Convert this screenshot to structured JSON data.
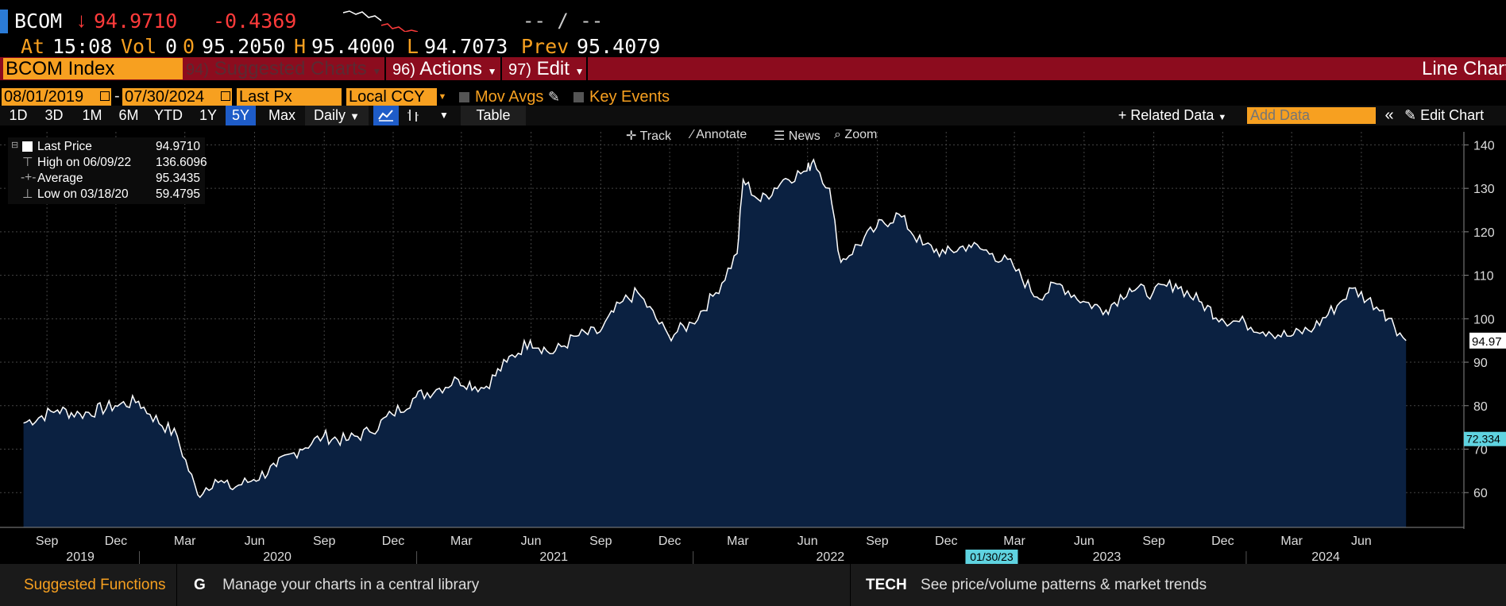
{
  "quote": {
    "ticker": "BCOM",
    "price": "94.9710",
    "down_arrow": "↓",
    "change": "-0.4369",
    "placeholder": "-- / --",
    "time_label": "At",
    "time": "15:08",
    "vol_label": "Vol",
    "vol": "0",
    "open_label": "0",
    "open": "95.2050",
    "high_label": "H",
    "high": "95.4000",
    "low_label": "L",
    "low": "94.7073",
    "prev_label": "Prev",
    "prev": "95.4079"
  },
  "menu": {
    "security": "BCOM Index",
    "suggested_num": "94)",
    "suggested": "Suggested Charts",
    "actions_num": "96)",
    "actions": "Actions",
    "edit_num": "97)",
    "edit": "Edit",
    "chart_type": "Line Chart"
  },
  "options": {
    "start_date": "08/01/2019",
    "dash": "-",
    "end_date": "07/30/2024",
    "field": "Last Px",
    "currency": "Local CCY",
    "mov_avgs": "Mov Avgs",
    "key_events": "Key Events"
  },
  "toolbar": {
    "ranges": [
      "1D",
      "3D",
      "1M",
      "6M",
      "YTD",
      "1Y",
      "5Y",
      "Max"
    ],
    "selected_range": "5Y",
    "frequency": "Daily",
    "table": "Table",
    "related": "+ Related Data",
    "add_data_placeholder": "Add Data",
    "edit_chart": "Edit Chart"
  },
  "chart_tools": [
    "Track",
    "Annotate",
    "News",
    "Zoom"
  ],
  "legend": {
    "rows": [
      {
        "label": "Last Price",
        "value": "94.9710"
      },
      {
        "label": "High on 06/09/22",
        "value": "136.6096"
      },
      {
        "label": "Average",
        "value": "95.3435"
      },
      {
        "label": "Low on 03/18/20",
        "value": "59.4795"
      }
    ]
  },
  "colors": {
    "accent_orange": "#f7a020",
    "menu_red": "#8c0c1e",
    "down_red": "#ff3b3b",
    "area_fill": "#0b2141",
    "line": "#ffffff"
  },
  "chart_data": {
    "type": "area",
    "ylim": [
      52,
      143
    ],
    "y_ticks": [
      60,
      70,
      80,
      90,
      100,
      110,
      120,
      130,
      140
    ],
    "last_value_label": "94.97",
    "crosshair_label": "72.334",
    "crosshair_date": "01/30/23",
    "month_ticks": [
      "Sep",
      "Dec",
      "Mar",
      "Jun",
      "Sep",
      "Dec",
      "Mar",
      "Jun",
      "Sep",
      "Dec",
      "Mar",
      "Jun",
      "Sep",
      "Dec",
      "Mar",
      "Jun",
      "Sep",
      "Dec",
      "Mar",
      "Jun"
    ],
    "year_labels": [
      "2019",
      "2020",
      "2021",
      "2022",
      "2023",
      "2024"
    ],
    "x": [
      "2019-08-01",
      "2019-09-15",
      "2019-10-15",
      "2019-11-30",
      "2019-12-31",
      "2020-01-15",
      "2020-02-20",
      "2020-03-18",
      "2020-04-10",
      "2020-04-30",
      "2020-05-31",
      "2020-06-30",
      "2020-07-31",
      "2020-08-31",
      "2020-09-30",
      "2020-10-31",
      "2020-11-30",
      "2020-12-31",
      "2021-01-31",
      "2021-02-25",
      "2021-03-31",
      "2021-04-30",
      "2021-05-31",
      "2021-06-30",
      "2021-07-31",
      "2021-08-31",
      "2021-09-30",
      "2021-10-20",
      "2021-11-30",
      "2021-12-31",
      "2022-01-31",
      "2022-02-28",
      "2022-03-08",
      "2022-03-31",
      "2022-04-30",
      "2022-05-31",
      "2022-06-09",
      "2022-06-30",
      "2022-07-15",
      "2022-08-31",
      "2022-09-30",
      "2022-10-31",
      "2022-11-30",
      "2022-12-31",
      "2023-01-31",
      "2023-02-28",
      "2023-03-31",
      "2023-04-30",
      "2023-05-31",
      "2023-06-30",
      "2023-07-31",
      "2023-08-31",
      "2023-09-30",
      "2023-10-31",
      "2023-11-30",
      "2023-12-31",
      "2024-01-31",
      "2024-02-29",
      "2024-03-31",
      "2024-04-30",
      "2024-05-20",
      "2024-06-30",
      "2024-07-30"
    ],
    "y": [
      76,
      79,
      78,
      80,
      81,
      78,
      73,
      59.5,
      63,
      61,
      63,
      66,
      70,
      73,
      72,
      74,
      78,
      82,
      84,
      86,
      84,
      90,
      95,
      92,
      96,
      97,
      104,
      106,
      96,
      99,
      106,
      115,
      132,
      127,
      132,
      134,
      136.6,
      130,
      113,
      121,
      124,
      117,
      115,
      117,
      115,
      112,
      105,
      108,
      104,
      102,
      107,
      106,
      108,
      104,
      100,
      99,
      97,
      96,
      98,
      103,
      107,
      102,
      94.97
    ]
  },
  "footer": {
    "suggested": "Suggested Functions",
    "g_key": "G",
    "g_text": "Manage your charts in a central library",
    "tech_key": "TECH",
    "tech_text": "See price/volume patterns & market trends"
  }
}
